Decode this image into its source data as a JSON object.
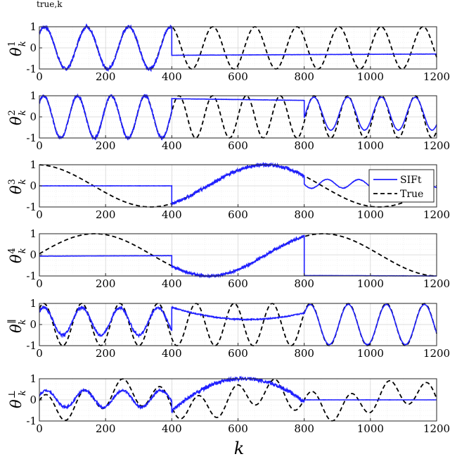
{
  "top_fragment": "true,k",
  "colors": {
    "sift": "#1f1fff",
    "true": "#000000"
  },
  "chart_data": {
    "type": "line",
    "xlabel": "k",
    "xlim": [
      0,
      1200
    ],
    "xticks": [
      0,
      200,
      400,
      600,
      800,
      1000,
      1200
    ],
    "ylim": [
      -1,
      1
    ],
    "yticks": [
      -1,
      0,
      1
    ],
    "grid": true,
    "legend": {
      "entries": [
        "SIFt",
        "True"
      ],
      "location": "right",
      "panel": 3
    },
    "panels": [
      {
        "ylabel_base": "θ",
        "ylabel_sup": "1",
        "ylabel_sub": "k",
        "true": {
          "segments": [
            {
              "kind": "sin",
              "from": 0,
              "to": 1200,
              "amp": 1,
              "period": 127,
              "phase": 0.78
            }
          ]
        },
        "sift": {
          "segments": [
            {
              "kind": "track",
              "from": 0,
              "to": 400,
              "noise": 0.07
            },
            {
              "kind": "line",
              "from": 400,
              "to": 1200,
              "y0": -0.35,
              "y1": -0.29,
              "noise": 0.004
            }
          ]
        }
      },
      {
        "ylabel_base": "θ",
        "ylabel_sup": "2",
        "ylabel_sub": "k",
        "true": {
          "segments": [
            {
              "kind": "sin",
              "from": 0,
              "to": 1200,
              "amp": 1,
              "period": 102,
              "phase": 0.75
            }
          ]
        },
        "sift": {
          "segments": [
            {
              "kind": "track",
              "from": 0,
              "to": 400,
              "noise": 0.06
            },
            {
              "kind": "line",
              "from": 400,
              "to": 800,
              "y0": 0.86,
              "y1": 0.78,
              "noise": 0.004
            },
            {
              "kind": "sin",
              "from": 800,
              "to": 1200,
              "amp": 0.78,
              "period": 102,
              "phase": 0.75,
              "offset": 0.15,
              "noise": 0.01
            }
          ]
        }
      },
      {
        "ylabel_base": "θ",
        "ylabel_sup": "3",
        "ylabel_sub": "k",
        "true": {
          "segments": [
            {
              "kind": "sin",
              "from": 0,
              "to": 1200,
              "amp": 1,
              "period": 690,
              "phase": 1.65
            }
          ]
        },
        "sift": {
          "segments": [
            {
              "kind": "line",
              "from": 0,
              "to": 400,
              "y0": 0.0,
              "y1": 0.0,
              "noise": 0.004
            },
            {
              "kind": "track",
              "from": 400,
              "to": 800,
              "noise": 0.06
            },
            {
              "kind": "sin",
              "from": 800,
              "to": 1200,
              "amp": 0.22,
              "period": 95,
              "phase": 0.6,
              "offset": 0.1,
              "damp": 0.0006,
              "noise": 0.01
            }
          ]
        }
      },
      {
        "ylabel_base": "θ",
        "ylabel_sup": "4",
        "ylabel_sub": "k",
        "true": {
          "segments": [
            {
              "kind": "sin",
              "from": 0,
              "to": 1200,
              "amp": 1,
              "period": 690,
              "phase": 0.05
            }
          ]
        },
        "sift": {
          "segments": [
            {
              "kind": "line",
              "from": 0,
              "to": 400,
              "y0": -0.06,
              "y1": -0.04,
              "noise": 0.004
            },
            {
              "kind": "track",
              "from": 400,
              "to": 800,
              "noise": 0.05
            },
            {
              "kind": "line",
              "from": 800,
              "to": 1200,
              "y0": -0.98,
              "y1": -1.0,
              "noise": 0.004
            }
          ]
        }
      },
      {
        "ylabel_base": "θ",
        "ylabel_sup": "∥",
        "ylabel_sub": "k",
        "true": {
          "segments": [
            {
              "kind": "sin",
              "from": 0,
              "to": 1200,
              "amp": 1,
              "period": 115,
              "phase": 0.85
            }
          ]
        },
        "sift": {
          "segments": [
            {
              "kind": "sin",
              "from": 0,
              "to": 400,
              "amp": 0.65,
              "period": 115,
              "phase": 0.85,
              "offset": 0.15,
              "noise": 0.05
            },
            {
              "kind": "quad",
              "from": 400,
              "to": 800,
              "y0": 0.82,
              "ymid": 0.25,
              "y1": 0.55,
              "noise": 0.02
            },
            {
              "kind": "sin",
              "from": 800,
              "to": 1200,
              "amp": 0.95,
              "period": 115,
              "phase": 0.85,
              "offset": 0.0,
              "noise": 0.01
            }
          ]
        }
      },
      {
        "ylabel_base": "θ",
        "ylabel_sup": "⊥",
        "ylabel_sub": "k",
        "true": {
          "segments": [
            {
              "kind": "sum",
              "from": 0,
              "to": 1200,
              "amp1": 0.6,
              "period1": 115,
              "phase1": 0.4,
              "amp2": 0.4,
              "period2": 420,
              "phase2": 3.9
            }
          ]
        },
        "sift": {
          "segments": [
            {
              "kind": "sin",
              "from": 0,
              "to": 400,
              "amp": 0.4,
              "period": 115,
              "phase": 0.4,
              "offset": 0.05,
              "noise": 0.04
            },
            {
              "kind": "quad",
              "from": 400,
              "to": 800,
              "y0": -0.55,
              "ymid": 1.0,
              "y1": -0.1,
              "noise": 0.07
            },
            {
              "kind": "line",
              "from": 800,
              "to": 1200,
              "y0": 0.0,
              "y1": 0.0,
              "noise": 0.002
            }
          ]
        }
      }
    ]
  }
}
